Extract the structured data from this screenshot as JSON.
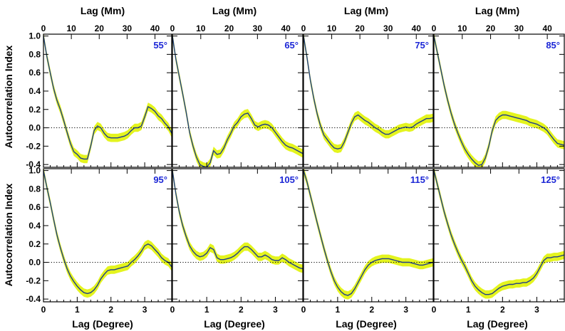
{
  "colors": {
    "band": "#e4f41e",
    "line": "#1f3d8a",
    "label": "#1c27d6",
    "zero": "#000000"
  },
  "chart_data": {
    "type": "line",
    "layout": "2x4 grid of panels",
    "ylabel": "Autocorrelation Index",
    "xlabel_bottom": "Lag (Degree)",
    "xlabel_top": "Lag (Mm)",
    "xlim_degree": [
      0,
      3.8
    ],
    "ylim": [
      -0.43,
      1.02
    ],
    "xticks_degree": [
      "0",
      "1",
      "2",
      "3"
    ],
    "xticks_mm": [
      "0",
      "10",
      "20",
      "30",
      "40"
    ],
    "yticks": [
      "1.0",
      "0.8",
      "0.6",
      "0.4",
      "0.2",
      "0.0",
      "-0.2",
      "-0.4"
    ],
    "zero_line": "dotted",
    "uncertainty_band_halfwidth": 0.045,
    "panels": [
      {
        "label": "55°",
        "x": [
          0,
          0.1,
          0.2,
          0.3,
          0.4,
          0.5,
          0.6,
          0.7,
          0.8,
          0.9,
          1.0,
          1.1,
          1.2,
          1.3,
          1.4,
          1.5,
          1.6,
          1.7,
          1.8,
          1.9,
          2.0,
          2.1,
          2.2,
          2.3,
          2.4,
          2.5,
          2.6,
          2.7,
          2.8,
          2.9,
          3.0,
          3.1,
          3.2,
          3.3,
          3.4,
          3.5,
          3.6,
          3.7,
          3.8
        ],
        "y": [
          1.0,
          0.78,
          0.6,
          0.43,
          0.3,
          0.2,
          0.08,
          -0.05,
          -0.17,
          -0.26,
          -0.29,
          -0.33,
          -0.34,
          -0.34,
          -0.2,
          -0.03,
          0.02,
          0.0,
          -0.06,
          -0.1,
          -0.11,
          -0.11,
          -0.11,
          -0.1,
          -0.09,
          -0.07,
          -0.03,
          0.0,
          0.0,
          0.02,
          0.12,
          0.23,
          0.21,
          0.18,
          0.13,
          0.1,
          0.05,
          0.01,
          -0.06
        ]
      },
      {
        "label": "65°",
        "x": [
          0,
          0.1,
          0.2,
          0.3,
          0.4,
          0.5,
          0.6,
          0.7,
          0.8,
          0.9,
          1.0,
          1.1,
          1.2,
          1.3,
          1.4,
          1.5,
          1.6,
          1.7,
          1.8,
          1.9,
          2.0,
          2.1,
          2.2,
          2.3,
          2.4,
          2.5,
          2.6,
          2.7,
          2.8,
          2.9,
          3.0,
          3.1,
          3.2,
          3.3,
          3.4,
          3.5,
          3.6,
          3.7,
          3.8
        ],
        "y": [
          1.0,
          0.75,
          0.56,
          0.37,
          0.17,
          -0.05,
          -0.2,
          -0.32,
          -0.4,
          -0.42,
          -0.43,
          -0.38,
          -0.25,
          -0.29,
          -0.28,
          -0.22,
          -0.13,
          -0.06,
          0.02,
          0.06,
          0.12,
          0.15,
          0.16,
          0.1,
          0.03,
          0.01,
          0.03,
          0.04,
          0.03,
          0.0,
          -0.05,
          -0.1,
          -0.15,
          -0.19,
          -0.21,
          -0.22,
          -0.24,
          -0.26,
          -0.28
        ]
      },
      {
        "label": "75°",
        "x": [
          0,
          0.1,
          0.2,
          0.3,
          0.4,
          0.5,
          0.6,
          0.7,
          0.8,
          0.9,
          1.0,
          1.1,
          1.2,
          1.3,
          1.4,
          1.5,
          1.6,
          1.7,
          1.8,
          1.9,
          2.0,
          2.1,
          2.2,
          2.3,
          2.4,
          2.5,
          2.6,
          2.7,
          2.8,
          2.9,
          3.0,
          3.1,
          3.2,
          3.3,
          3.4,
          3.5,
          3.6,
          3.7,
          3.8
        ],
        "y": [
          1.0,
          0.77,
          0.52,
          0.32,
          0.15,
          0.02,
          -0.08,
          -0.13,
          -0.18,
          -0.22,
          -0.23,
          -0.22,
          -0.15,
          -0.05,
          0.05,
          0.12,
          0.14,
          0.11,
          0.08,
          0.06,
          0.03,
          0.0,
          -0.02,
          -0.05,
          -0.07,
          -0.07,
          -0.05,
          -0.03,
          -0.01,
          0.0,
          0.01,
          0.0,
          0.01,
          0.04,
          0.06,
          0.08,
          0.1,
          0.1,
          0.11
        ]
      },
      {
        "label": "85°",
        "x": [
          0,
          0.1,
          0.2,
          0.3,
          0.4,
          0.5,
          0.6,
          0.7,
          0.8,
          0.9,
          1.0,
          1.1,
          1.2,
          1.3,
          1.4,
          1.5,
          1.6,
          1.7,
          1.8,
          1.9,
          2.0,
          2.1,
          2.2,
          2.3,
          2.4,
          2.5,
          2.6,
          2.7,
          2.8,
          2.9,
          3.0,
          3.1,
          3.2,
          3.3,
          3.4,
          3.5,
          3.6,
          3.7,
          3.8
        ],
        "y": [
          1.0,
          0.82,
          0.64,
          0.46,
          0.3,
          0.16,
          0.04,
          -0.06,
          -0.15,
          -0.23,
          -0.29,
          -0.34,
          -0.38,
          -0.41,
          -0.4,
          -0.33,
          -0.2,
          -0.03,
          0.08,
          0.12,
          0.14,
          0.14,
          0.13,
          0.12,
          0.11,
          0.1,
          0.09,
          0.08,
          0.06,
          0.05,
          0.04,
          0.02,
          0.0,
          -0.03,
          -0.08,
          -0.13,
          -0.17,
          -0.18,
          -0.19
        ]
      },
      {
        "label": "95°",
        "x": [
          0,
          0.1,
          0.2,
          0.3,
          0.4,
          0.5,
          0.6,
          0.7,
          0.8,
          0.9,
          1.0,
          1.1,
          1.2,
          1.3,
          1.4,
          1.5,
          1.6,
          1.7,
          1.8,
          1.9,
          2.0,
          2.1,
          2.2,
          2.3,
          2.4,
          2.5,
          2.6,
          2.7,
          2.8,
          2.9,
          3.0,
          3.1,
          3.2,
          3.3,
          3.4,
          3.5,
          3.6,
          3.7,
          3.8
        ],
        "y": [
          1.0,
          0.82,
          0.65,
          0.47,
          0.3,
          0.16,
          0.04,
          -0.07,
          -0.15,
          -0.21,
          -0.26,
          -0.3,
          -0.33,
          -0.34,
          -0.33,
          -0.3,
          -0.25,
          -0.18,
          -0.13,
          -0.09,
          -0.08,
          -0.08,
          -0.07,
          -0.06,
          -0.05,
          -0.04,
          0.0,
          0.03,
          0.07,
          0.12,
          0.18,
          0.2,
          0.18,
          0.14,
          0.1,
          0.05,
          0.02,
          0.0,
          -0.05
        ]
      },
      {
        "label": "105°",
        "x": [
          0,
          0.1,
          0.2,
          0.3,
          0.4,
          0.5,
          0.6,
          0.7,
          0.8,
          0.9,
          1.0,
          1.1,
          1.2,
          1.3,
          1.4,
          1.5,
          1.6,
          1.7,
          1.8,
          1.9,
          2.0,
          2.1,
          2.2,
          2.3,
          2.4,
          2.5,
          2.6,
          2.7,
          2.8,
          2.9,
          3.0,
          3.1,
          3.2,
          3.3,
          3.4,
          3.5,
          3.6,
          3.7,
          3.8
        ],
        "y": [
          1.0,
          0.75,
          0.55,
          0.4,
          0.28,
          0.18,
          0.12,
          0.08,
          0.06,
          0.07,
          0.1,
          0.16,
          0.14,
          0.05,
          0.03,
          0.03,
          0.04,
          0.05,
          0.07,
          0.1,
          0.14,
          0.17,
          0.17,
          0.14,
          0.1,
          0.06,
          0.06,
          0.08,
          0.06,
          0.03,
          0.02,
          0.02,
          0.05,
          0.03,
          0.0,
          -0.02,
          -0.04,
          -0.06,
          -0.07
        ]
      },
      {
        "label": "115°",
        "x": [
          0,
          0.1,
          0.2,
          0.3,
          0.4,
          0.5,
          0.6,
          0.7,
          0.8,
          0.9,
          1.0,
          1.1,
          1.2,
          1.3,
          1.4,
          1.5,
          1.6,
          1.7,
          1.8,
          1.9,
          2.0,
          2.1,
          2.2,
          2.3,
          2.4,
          2.5,
          2.6,
          2.7,
          2.8,
          2.9,
          3.0,
          3.1,
          3.2,
          3.3,
          3.4,
          3.5,
          3.6,
          3.7,
          3.8
        ],
        "y": [
          1.0,
          0.88,
          0.73,
          0.58,
          0.43,
          0.29,
          0.15,
          0.02,
          -0.1,
          -0.2,
          -0.27,
          -0.32,
          -0.35,
          -0.36,
          -0.34,
          -0.29,
          -0.22,
          -0.15,
          -0.08,
          -0.03,
          0.0,
          0.02,
          0.03,
          0.04,
          0.04,
          0.04,
          0.03,
          0.02,
          0.01,
          0.0,
          0.0,
          0.0,
          -0.01,
          -0.02,
          -0.03,
          -0.03,
          -0.02,
          -0.01,
          0.0
        ]
      },
      {
        "label": "125°",
        "x": [
          0,
          0.1,
          0.2,
          0.3,
          0.4,
          0.5,
          0.6,
          0.7,
          0.8,
          0.9,
          1.0,
          1.1,
          1.2,
          1.3,
          1.4,
          1.5,
          1.6,
          1.7,
          1.8,
          1.9,
          2.0,
          2.1,
          2.2,
          2.3,
          2.4,
          2.5,
          2.6,
          2.7,
          2.8,
          2.9,
          3.0,
          3.1,
          3.2,
          3.3,
          3.4,
          3.5,
          3.6,
          3.7,
          3.8
        ],
        "y": [
          1.0,
          0.85,
          0.7,
          0.55,
          0.42,
          0.3,
          0.2,
          0.11,
          0.03,
          -0.04,
          -0.12,
          -0.2,
          -0.26,
          -0.3,
          -0.33,
          -0.35,
          -0.35,
          -0.34,
          -0.31,
          -0.28,
          -0.26,
          -0.25,
          -0.24,
          -0.24,
          -0.23,
          -0.23,
          -0.22,
          -0.22,
          -0.2,
          -0.17,
          -0.12,
          -0.05,
          0.02,
          0.05,
          0.05,
          0.06,
          0.06,
          0.07,
          0.08
        ]
      }
    ]
  }
}
